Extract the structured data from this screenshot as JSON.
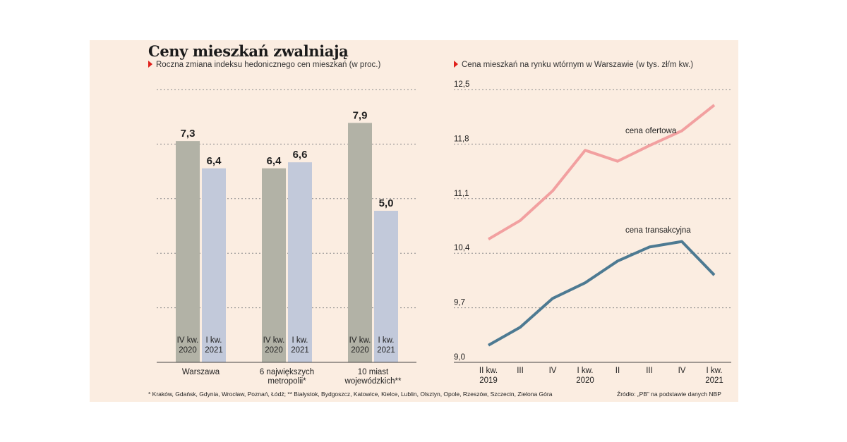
{
  "title": "Ceny mieszkań zwalniają",
  "footnote": "* Kraków, Gdańsk, Gdynia, Wrocław, Poznań, Łódź; ** Białystok, Bydgoszcz, Katowice, Kielce, Lublin, Olsztyn, Opole, Rzeszów, Szczecin, Zielona Góra",
  "source": "Źródło: „PB” na podstawie danych NBP",
  "colors": {
    "background": "#fbede1",
    "bar_q4": "#b2b2a6",
    "bar_q1": "#c2c9da",
    "line_offer": "#f2a0a0",
    "line_transaction": "#4d7a92",
    "accent_triangle": "#e0201b",
    "grid": "#8a8a8a"
  },
  "chart_data": [
    {
      "type": "bar",
      "title": "Roczna zmiana indeksu hedonicznego cen mieszkań (w proc.)",
      "groups": [
        {
          "label_lines": [
            "Warszawa"
          ]
        },
        {
          "label_lines": [
            "6 największych",
            "metropolii*"
          ]
        },
        {
          "label_lines": [
            "10 miast",
            "wojewódzkich**"
          ]
        }
      ],
      "series": [
        {
          "name": "IV kw. 2020",
          "label_lines": [
            "IV kw.",
            "2020"
          ],
          "color": "#b2b2a6",
          "values": [
            7.3,
            6.4,
            7.9
          ],
          "value_labels": [
            "7,3",
            "6,4",
            "7,9"
          ]
        },
        {
          "name": "I kw. 2021",
          "label_lines": [
            "I kw.",
            "2021"
          ],
          "color": "#c2c9da",
          "values": [
            6.4,
            6.6,
            5.0
          ],
          "value_labels": [
            "6,4",
            "6,6",
            "5,0"
          ]
        }
      ],
      "ylim": [
        0,
        9
      ],
      "grid_values": [
        1.8,
        3.6,
        5.4,
        7.2,
        9.0
      ]
    },
    {
      "type": "line",
      "title": "Cena mieszkań na rynku wtórnym w Warszawie (w tys. zł/m kw.)",
      "x_labels": [
        [
          "II kw.",
          "2019"
        ],
        [
          "III"
        ],
        [
          "IV"
        ],
        [
          "I kw.",
          "2020"
        ],
        [
          "II"
        ],
        [
          "III"
        ],
        [
          "IV"
        ],
        [
          "I kw.",
          "2021"
        ]
      ],
      "y_ticks": [
        9.0,
        9.7,
        10.4,
        11.1,
        11.8,
        12.5
      ],
      "y_tick_labels": [
        "9,0",
        "9,7",
        "10,4",
        "11,1",
        "11,8",
        "12,5"
      ],
      "ylim": [
        9.0,
        12.5
      ],
      "series": [
        {
          "name": "cena ofertowa",
          "color": "#f2a0a0",
          "values": [
            10.58,
            10.82,
            11.2,
            11.72,
            11.58,
            11.78,
            11.97,
            12.3
          ]
        },
        {
          "name": "cena transakcyjna",
          "color": "#4d7a92",
          "values": [
            9.22,
            9.45,
            9.82,
            10.02,
            10.3,
            10.48,
            10.55,
            10.12
          ]
        }
      ]
    }
  ]
}
